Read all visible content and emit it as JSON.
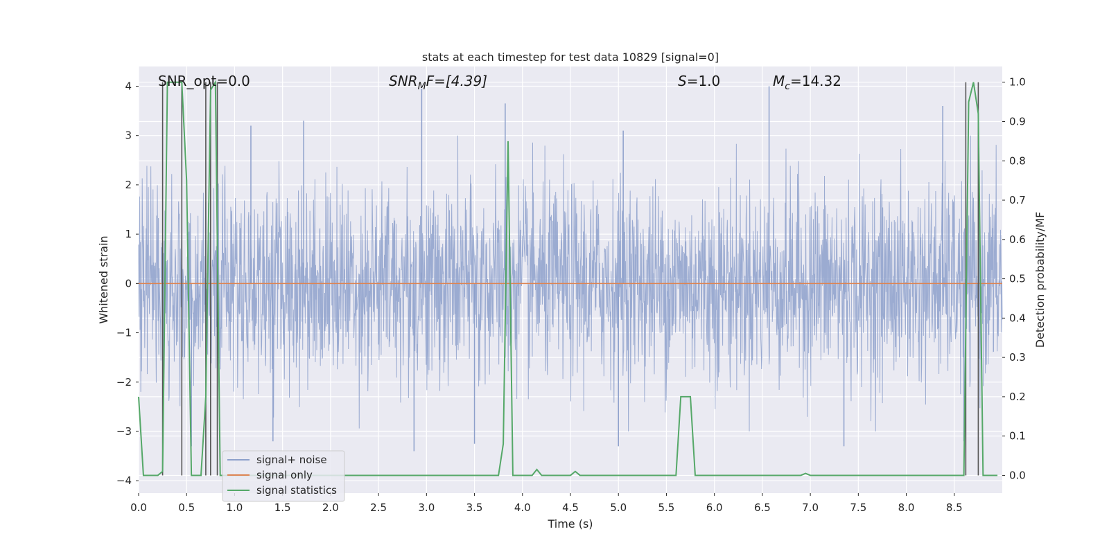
{
  "chart_data": {
    "type": "line",
    "title": "stats at each timestep for test data 10829 [signal=0]",
    "xlabel": "Time (s)",
    "ylabel": "Whitened strain",
    "y2label": "Detection probability/MF",
    "xlim": [
      0.0,
      9.0
    ],
    "ylim": [
      -4.25,
      4.4
    ],
    "y2lim": [
      -0.045,
      1.04
    ],
    "x_ticks": [
      "0.0",
      "0.5",
      "1.0",
      "1.5",
      "2.0",
      "2.5",
      "3.0",
      "3.5",
      "4.0",
      "4.5",
      "5.0",
      "5.5",
      "6.0",
      "6.5",
      "7.0",
      "7.5",
      "8.0",
      "8.5"
    ],
    "y_ticks": [
      "−4",
      "−3",
      "−2",
      "−1",
      "0",
      "1",
      "2",
      "3",
      "4"
    ],
    "y2_ticks": [
      "0.0",
      "0.1",
      "0.2",
      "0.3",
      "0.4",
      "0.5",
      "0.6",
      "0.7",
      "0.8",
      "0.9",
      "1.0"
    ],
    "grid": true,
    "legend": {
      "placement": "lower-left",
      "entries": [
        {
          "label": "signal+ noise",
          "color": "#8da0cb"
        },
        {
          "label": "signal only",
          "color": "#dd8452"
        },
        {
          "label": "signal statistics",
          "color": "#55a868"
        }
      ]
    },
    "annotations": {
      "snr_opt": "SNR_opt=0.0",
      "snr_mf_main": "SNR",
      "snr_mf_sub": "M",
      "snr_mf_rest": "F=[4.39]",
      "s_main": "S",
      "s_rest": "=1.0",
      "mc_main": "M",
      "mc_sub": "c",
      "mc_rest": "=14.32"
    },
    "series": [
      {
        "name": "signal+ noise",
        "color": "#8da0cb",
        "noise_band": [
          -2.0,
          2.0
        ],
        "peaks": [
          [
            0.45,
            3.3
          ],
          [
            1.17,
            3.2
          ],
          [
            1.72,
            3.3
          ],
          [
            2.95,
            3.95
          ],
          [
            3.82,
            3.65
          ],
          [
            5.05,
            3.1
          ],
          [
            6.57,
            4.0
          ],
          [
            8.38,
            3.6
          ],
          [
            0.55,
            -3.3
          ],
          [
            1.4,
            -3.2
          ],
          [
            2.87,
            -3.4
          ],
          [
            3.5,
            -3.25
          ],
          [
            5.0,
            -3.3
          ],
          [
            7.35,
            -3.3
          ],
          [
            8.6,
            -3.2
          ]
        ]
      },
      {
        "name": "signal only",
        "color": "#dd8452",
        "x": [
          0.0,
          9.0
        ],
        "y": [
          0.0,
          0.0
        ]
      },
      {
        "name": "signal statistics",
        "color": "#55a868",
        "x": [
          0.0,
          0.05,
          0.2,
          0.25,
          0.3,
          0.45,
          0.5,
          0.55,
          0.6,
          0.65,
          0.7,
          0.75,
          0.8,
          0.85,
          0.95,
          1.05,
          3.75,
          3.8,
          3.85,
          3.9,
          3.95,
          4.1,
          4.15,
          4.2,
          4.25,
          4.5,
          4.55,
          4.6,
          4.65,
          5.6,
          5.65,
          5.7,
          5.75,
          5.8,
          5.85,
          6.9,
          6.95,
          7.0,
          8.35,
          8.6,
          8.65,
          8.7,
          8.75,
          8.8,
          8.85,
          8.95
        ],
        "y": [
          0.2,
          0.0,
          0.0,
          0.01,
          1.0,
          1.0,
          0.75,
          0.0,
          0.0,
          0.0,
          0.2,
          0.98,
          1.0,
          0.0,
          0.0,
          0.0,
          0.0,
          0.08,
          0.85,
          0.0,
          0.0,
          0.0,
          0.015,
          0.0,
          0.0,
          0.0,
          0.01,
          0.0,
          0.0,
          0.0,
          0.2,
          0.2,
          0.2,
          0.0,
          0.0,
          0.0,
          0.005,
          0.0,
          0.0,
          0.0,
          0.95,
          1.0,
          0.92,
          0.0,
          0.0,
          0.0
        ]
      }
    ],
    "vertical_lines_x": [
      0.25,
      0.45,
      0.7,
      0.75,
      0.82,
      8.62,
      8.75
    ]
  }
}
